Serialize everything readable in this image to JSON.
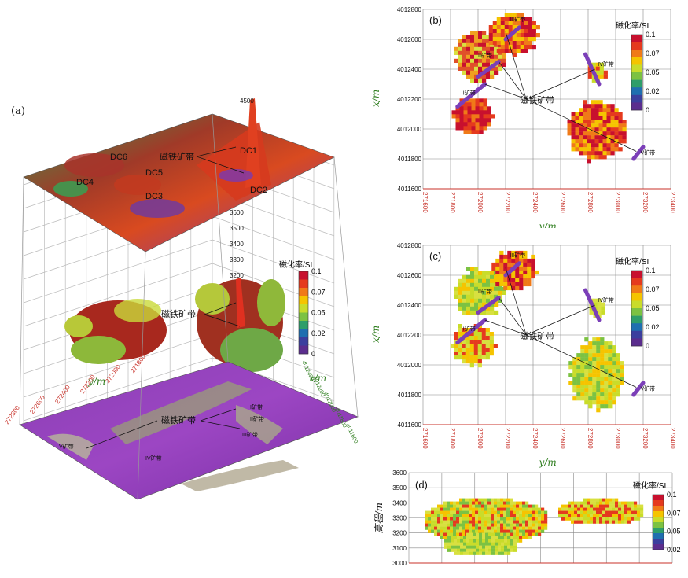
{
  "panels": {
    "a": {
      "label": "(a)",
      "surface_labels": [
        "DC6",
        "DC5",
        "DC4",
        "DC3",
        "DC1",
        "DC2"
      ],
      "vertical_ticks": [
        "4500",
        "3600",
        "3500",
        "3400",
        "3300",
        "3200"
      ],
      "y_axis_title": "y/m",
      "x_axis_title": "x/m",
      "y_ticks": [
        "272800",
        "272600",
        "272400",
        "272200",
        "272000",
        "271800"
      ],
      "x_ticks": [
        "4011600",
        "4011800",
        "4012000",
        "4012200",
        "4012400"
      ],
      "belt_label": "磁铁矿带",
      "belt_small": [
        "I矿带",
        "II矿带",
        "III矿带",
        "IV矿带",
        "V矿带"
      ]
    },
    "b": {
      "label": "(b)",
      "belt_label": "磁铁矿带",
      "belts": [
        "III矿带",
        "II矿带",
        "I矿带",
        "IV矿带",
        "V矿带"
      ]
    },
    "c": {
      "label": "(c)",
      "belt_label": "磁铁矿带",
      "belts": [
        "III矿带",
        "II矿带",
        "I矿带",
        "IV矿带",
        "V矿带"
      ]
    },
    "d": {
      "label": "(d)",
      "ylabel": "高程/m"
    }
  },
  "colorbar": {
    "title": "磁化率/SI",
    "ticks": [
      "0.1",
      "0.07",
      "0.05",
      "0.02",
      "0"
    ],
    "ticks_d": [
      "0.1",
      "0.07",
      "0.05",
      "0.02"
    ],
    "colors": [
      "#c8102e",
      "#e53a1e",
      "#f07a18",
      "#f5c400",
      "#c9dc2a",
      "#7cc242",
      "#2e9e6a",
      "#1f6fb0",
      "#3b3f9e",
      "#5b2d8e"
    ]
  },
  "chart_data": [
    {
      "type": "heatmap",
      "panel": "b",
      "xlabel": "y/m",
      "ylabel": "x/m",
      "x_ticks": [
        271600,
        271800,
        272000,
        272200,
        272400,
        272600,
        272800,
        273000,
        273200,
        273400
      ],
      "y_ticks": [
        4011600,
        4011800,
        4012000,
        4012200,
        4012400,
        4012600,
        4012800
      ],
      "xlim": [
        271600,
        273400
      ],
      "ylim": [
        4011600,
        4012800
      ],
      "colorbar_range": [
        0,
        0.1
      ]
    },
    {
      "type": "heatmap",
      "panel": "c",
      "xlabel": "y/m",
      "ylabel": "x/m",
      "x_ticks": [
        271600,
        271800,
        272000,
        272200,
        272400,
        272600,
        272800,
        273000,
        273200,
        273400
      ],
      "y_ticks": [
        4011600,
        4011800,
        4012000,
        4012200,
        4012400,
        4012600,
        4012800
      ],
      "xlim": [
        271600,
        273400
      ],
      "ylim": [
        4011600,
        4012800
      ],
      "colorbar_range": [
        0,
        0.1
      ]
    },
    {
      "type": "heatmap",
      "panel": "d",
      "ylabel": "高程/m",
      "y_ticks": [
        3000,
        3100,
        3200,
        3300,
        3400,
        3500,
        3600
      ],
      "ylim": [
        3000,
        3600
      ],
      "colorbar_range": [
        0.02,
        0.1
      ]
    }
  ]
}
